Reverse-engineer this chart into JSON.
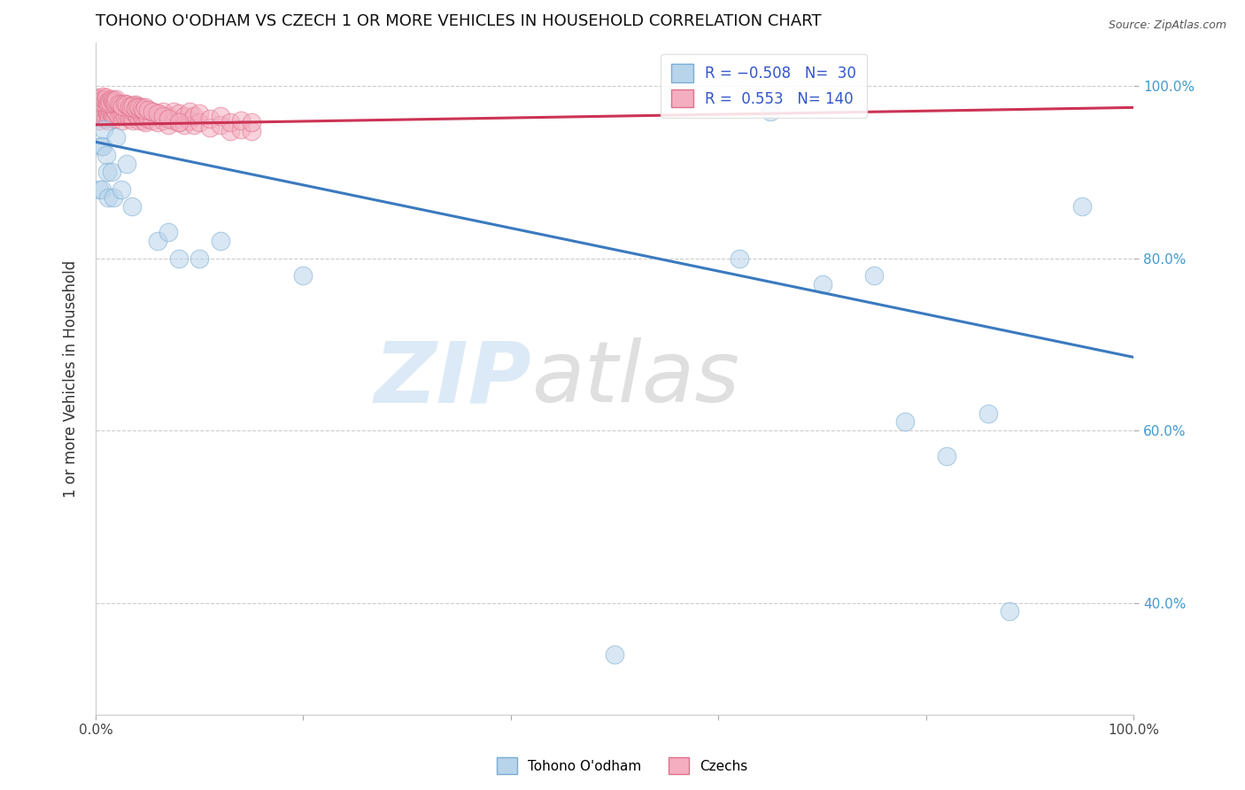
{
  "title": "TOHONO O'ODHAM VS CZECH 1 OR MORE VEHICLES IN HOUSEHOLD CORRELATION CHART",
  "source": "Source: ZipAtlas.com",
  "ylabel": "1 or more Vehicles in Household",
  "tohono_color": "#b8d4ea",
  "czech_color": "#f4aec0",
  "tohono_edge": "#7aadd4",
  "czech_edge": "#e0708a",
  "trendline_tohono": "#3a7abf",
  "trendline_czech": "#cc3355",
  "tohono_line_start_y": 0.935,
  "tohono_line_end_y": 0.685,
  "czech_line_start_y": 0.955,
  "czech_line_end_y": 0.975,
  "xlim": [
    0.0,
    1.0
  ],
  "ylim": [
    0.27,
    1.05
  ],
  "ytick_positions": [
    0.4,
    0.6,
    0.8,
    1.0
  ],
  "ytick_labels": [
    "40.0%",
    "60.0%",
    "80.0%",
    "100.0%"
  ],
  "xtick_positions": [
    0.0,
    1.0
  ],
  "xtick_labels": [
    "0.0%",
    "100.0%"
  ],
  "background_color": "#ffffff",
  "grid_color": "#cccccc",
  "watermark_zip_color": "#c5ddf2",
  "watermark_atlas_color": "#b8b8b8",
  "tohono_points_x": [
    0.003,
    0.005,
    0.006,
    0.007,
    0.008,
    0.01,
    0.011,
    0.012,
    0.015,
    0.017,
    0.02,
    0.025,
    0.03,
    0.035,
    0.06,
    0.07,
    0.08,
    0.1,
    0.12,
    0.2,
    0.5,
    0.62,
    0.65,
    0.7,
    0.75,
    0.78,
    0.82,
    0.86,
    0.88,
    0.95
  ],
  "tohono_points_y": [
    0.88,
    0.93,
    0.88,
    0.93,
    0.95,
    0.92,
    0.9,
    0.87,
    0.9,
    0.87,
    0.94,
    0.88,
    0.91,
    0.86,
    0.82,
    0.83,
    0.8,
    0.8,
    0.82,
    0.78,
    0.34,
    0.8,
    0.97,
    0.77,
    0.78,
    0.61,
    0.57,
    0.62,
    0.39,
    0.86
  ],
  "czech_points_x": [
    0.001,
    0.001,
    0.002,
    0.002,
    0.003,
    0.003,
    0.004,
    0.004,
    0.005,
    0.005,
    0.006,
    0.006,
    0.007,
    0.007,
    0.008,
    0.008,
    0.009,
    0.009,
    0.01,
    0.01,
    0.011,
    0.011,
    0.012,
    0.012,
    0.013,
    0.013,
    0.014,
    0.014,
    0.015,
    0.015,
    0.016,
    0.016,
    0.017,
    0.017,
    0.018,
    0.018,
    0.019,
    0.019,
    0.02,
    0.02,
    0.022,
    0.022,
    0.024,
    0.024,
    0.026,
    0.026,
    0.028,
    0.028,
    0.03,
    0.03,
    0.032,
    0.032,
    0.034,
    0.034,
    0.036,
    0.036,
    0.038,
    0.038,
    0.04,
    0.04,
    0.042,
    0.042,
    0.044,
    0.044,
    0.046,
    0.046,
    0.048,
    0.048,
    0.05,
    0.05,
    0.055,
    0.055,
    0.06,
    0.06,
    0.065,
    0.065,
    0.07,
    0.07,
    0.075,
    0.075,
    0.08,
    0.08,
    0.085,
    0.085,
    0.09,
    0.09,
    0.095,
    0.095,
    0.1,
    0.1,
    0.11,
    0.11,
    0.12,
    0.12,
    0.13,
    0.13,
    0.14,
    0.14,
    0.15,
    0.15,
    0.001,
    0.002,
    0.003,
    0.004,
    0.005,
    0.006,
    0.007,
    0.008,
    0.009,
    0.01,
    0.011,
    0.012,
    0.013,
    0.014,
    0.015,
    0.016,
    0.017,
    0.018,
    0.019,
    0.02,
    0.022,
    0.024,
    0.026,
    0.028,
    0.03,
    0.032,
    0.034,
    0.036,
    0.038,
    0.04,
    0.042,
    0.044,
    0.046,
    0.048,
    0.05,
    0.055,
    0.06,
    0.065,
    0.07,
    0.08
  ],
  "czech_points_y": [
    0.97,
    0.98,
    0.965,
    0.975,
    0.96,
    0.97,
    0.968,
    0.978,
    0.972,
    0.982,
    0.965,
    0.975,
    0.97,
    0.98,
    0.968,
    0.978,
    0.962,
    0.972,
    0.975,
    0.985,
    0.968,
    0.978,
    0.96,
    0.97,
    0.965,
    0.975,
    0.97,
    0.98,
    0.968,
    0.978,
    0.965,
    0.975,
    0.968,
    0.978,
    0.962,
    0.972,
    0.97,
    0.98,
    0.968,
    0.978,
    0.965,
    0.975,
    0.968,
    0.978,
    0.96,
    0.97,
    0.965,
    0.975,
    0.968,
    0.978,
    0.962,
    0.972,
    0.965,
    0.975,
    0.96,
    0.97,
    0.968,
    0.978,
    0.965,
    0.975,
    0.96,
    0.97,
    0.965,
    0.975,
    0.96,
    0.97,
    0.958,
    0.968,
    0.962,
    0.972,
    0.96,
    0.97,
    0.958,
    0.968,
    0.96,
    0.97,
    0.955,
    0.965,
    0.96,
    0.97,
    0.958,
    0.968,
    0.955,
    0.965,
    0.96,
    0.97,
    0.955,
    0.965,
    0.958,
    0.968,
    0.952,
    0.962,
    0.955,
    0.965,
    0.948,
    0.958,
    0.95,
    0.96,
    0.948,
    0.958,
    0.987,
    0.985,
    0.984,
    0.982,
    0.986,
    0.983,
    0.988,
    0.985,
    0.984,
    0.987,
    0.982,
    0.98,
    0.983,
    0.981,
    0.985,
    0.982,
    0.984,
    0.981,
    0.983,
    0.985,
    0.98,
    0.978,
    0.976,
    0.98,
    0.978,
    0.976,
    0.975,
    0.977,
    0.974,
    0.976,
    0.975,
    0.974,
    0.972,
    0.975,
    0.972,
    0.97,
    0.968,
    0.965,
    0.962,
    0.958
  ]
}
